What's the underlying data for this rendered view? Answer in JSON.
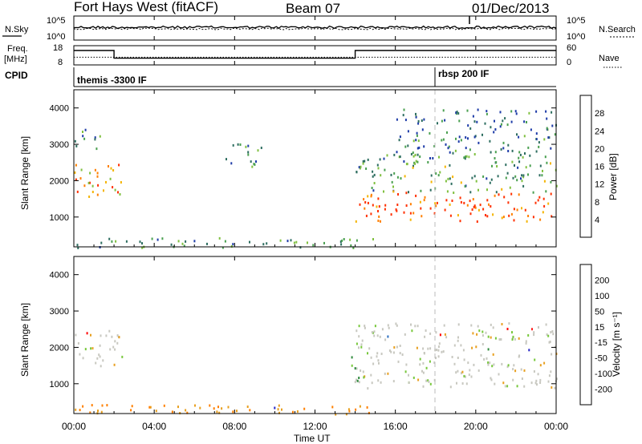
{
  "header": {
    "radar": "Fort Hays West (fitACF)",
    "beam": "Beam 07",
    "date": "01/Dec/2013"
  },
  "noise_panel": {
    "left_label": "N.Sky",
    "right_label": "N.Search",
    "left_ticks": [
      "10^5",
      "10^0"
    ],
    "right_ticks": [
      "10^5",
      "10^0"
    ]
  },
  "freq_panel": {
    "left_label_1": "Freq.",
    "left_label_2": "[MHz]",
    "right_label": "Nave",
    "left_ticks": [
      "18",
      "8"
    ],
    "right_ticks": [
      "60",
      "0"
    ],
    "freq_steps": [
      {
        "from_hour": 0,
        "to_hour": 2,
        "mhz": 15.5
      },
      {
        "from_hour": 2,
        "to_hour": 14,
        "mhz": 11.5
      },
      {
        "from_hour": 14,
        "to_hour": 24,
        "mhz": 15.5
      }
    ],
    "nave_level": 24
  },
  "cpid_panel": {
    "label": "CPID",
    "programs": [
      {
        "name": "themis -3300 IF",
        "start_hour": 0
      },
      {
        "name": "rbsp 200 IF",
        "start_hour": 18
      }
    ]
  },
  "power_panel": {
    "ylabel": "Slant Range [km]",
    "yticks": [
      "1000",
      "2000",
      "3000",
      "4000"
    ],
    "colorbar_label": "Power [dB]",
    "colorbar_ticks": [
      "4",
      "8",
      "12",
      "16",
      "20",
      "24",
      "28"
    ]
  },
  "velocity_panel": {
    "ylabel": "Slant Range [km]",
    "yticks": [
      "1000",
      "2000",
      "3000",
      "4000"
    ],
    "colorbar_label": "Velocity [m s⁻¹]",
    "colorbar_ticks": [
      "200",
      "100",
      "50",
      "15",
      "-15",
      "-50",
      "-100",
      "-200"
    ]
  },
  "xaxis": {
    "label": "Time UT",
    "ticks": [
      "00:00",
      "04:00",
      "08:00",
      "12:00",
      "16:00",
      "20:00",
      "00:00"
    ]
  },
  "colors": {
    "power_scale": [
      "#1a1aff",
      "#1e3ca8",
      "#2e6e60",
      "#4aa050",
      "#80c040",
      "#f4b400",
      "#ff8000",
      "#ff3000"
    ],
    "velocity_scale": [
      "#2626c8",
      "#2a6ec0",
      "#2e8a3c",
      "#78c83c",
      "#c8c8c0",
      "#e8a020",
      "#ff8000",
      "#ff2020",
      "#ff0000"
    ],
    "ground_scatter": "#c8c8c0"
  },
  "chart_data": {
    "type": "heatmap",
    "x_range_hours": [
      0,
      24
    ],
    "y_range_km": [
      180,
      4500
    ],
    "power_features": [
      {
        "name": "auroral echoes 00-02",
        "t0": 0.0,
        "t1": 2.4,
        "r0": 1500,
        "r1": 2500,
        "level_db": 22
      },
      {
        "name": "high range 00-01",
        "t0": 0.0,
        "t1": 1.3,
        "r0": 2900,
        "r1": 3500,
        "level_db": 10
      },
      {
        "name": "patch 08-09",
        "t0": 7.5,
        "t1": 9.3,
        "r0": 2400,
        "r1": 3100,
        "level_db": 10
      },
      {
        "name": "near range 00-15",
        "t0": 0.0,
        "t1": 15.0,
        "r0": 180,
        "r1": 450,
        "level_db": 10
      },
      {
        "name": "band 14-24",
        "t0": 14.0,
        "t1": 24.0,
        "r0": 900,
        "r1": 1700,
        "level_db": 28
      },
      {
        "name": "upper band 14-24",
        "t0": 14.0,
        "t1": 24.0,
        "r0": 1700,
        "r1": 2800,
        "level_db": 12
      },
      {
        "name": "sporadic 16-24",
        "t0": 16.0,
        "t1": 24.0,
        "r0": 2800,
        "r1": 4000,
        "level_db": 8
      }
    ],
    "velocity_features": [
      {
        "name": "ground scatter 00-02",
        "t0": 0.0,
        "t1": 2.4,
        "r0": 1500,
        "r1": 2500,
        "velocity": 0
      },
      {
        "name": "ground scatter 14-24",
        "t0": 14.0,
        "t1": 24.0,
        "r0": 900,
        "r1": 2700,
        "velocity": 0
      },
      {
        "name": "flow 14",
        "t0": 13.8,
        "t1": 14.4,
        "r0": 1000,
        "r1": 2200,
        "velocity": 30
      },
      {
        "name": "near range 00-15",
        "t0": 0.0,
        "t1": 15.0,
        "r0": 180,
        "r1": 450,
        "velocity": -50
      }
    ]
  }
}
